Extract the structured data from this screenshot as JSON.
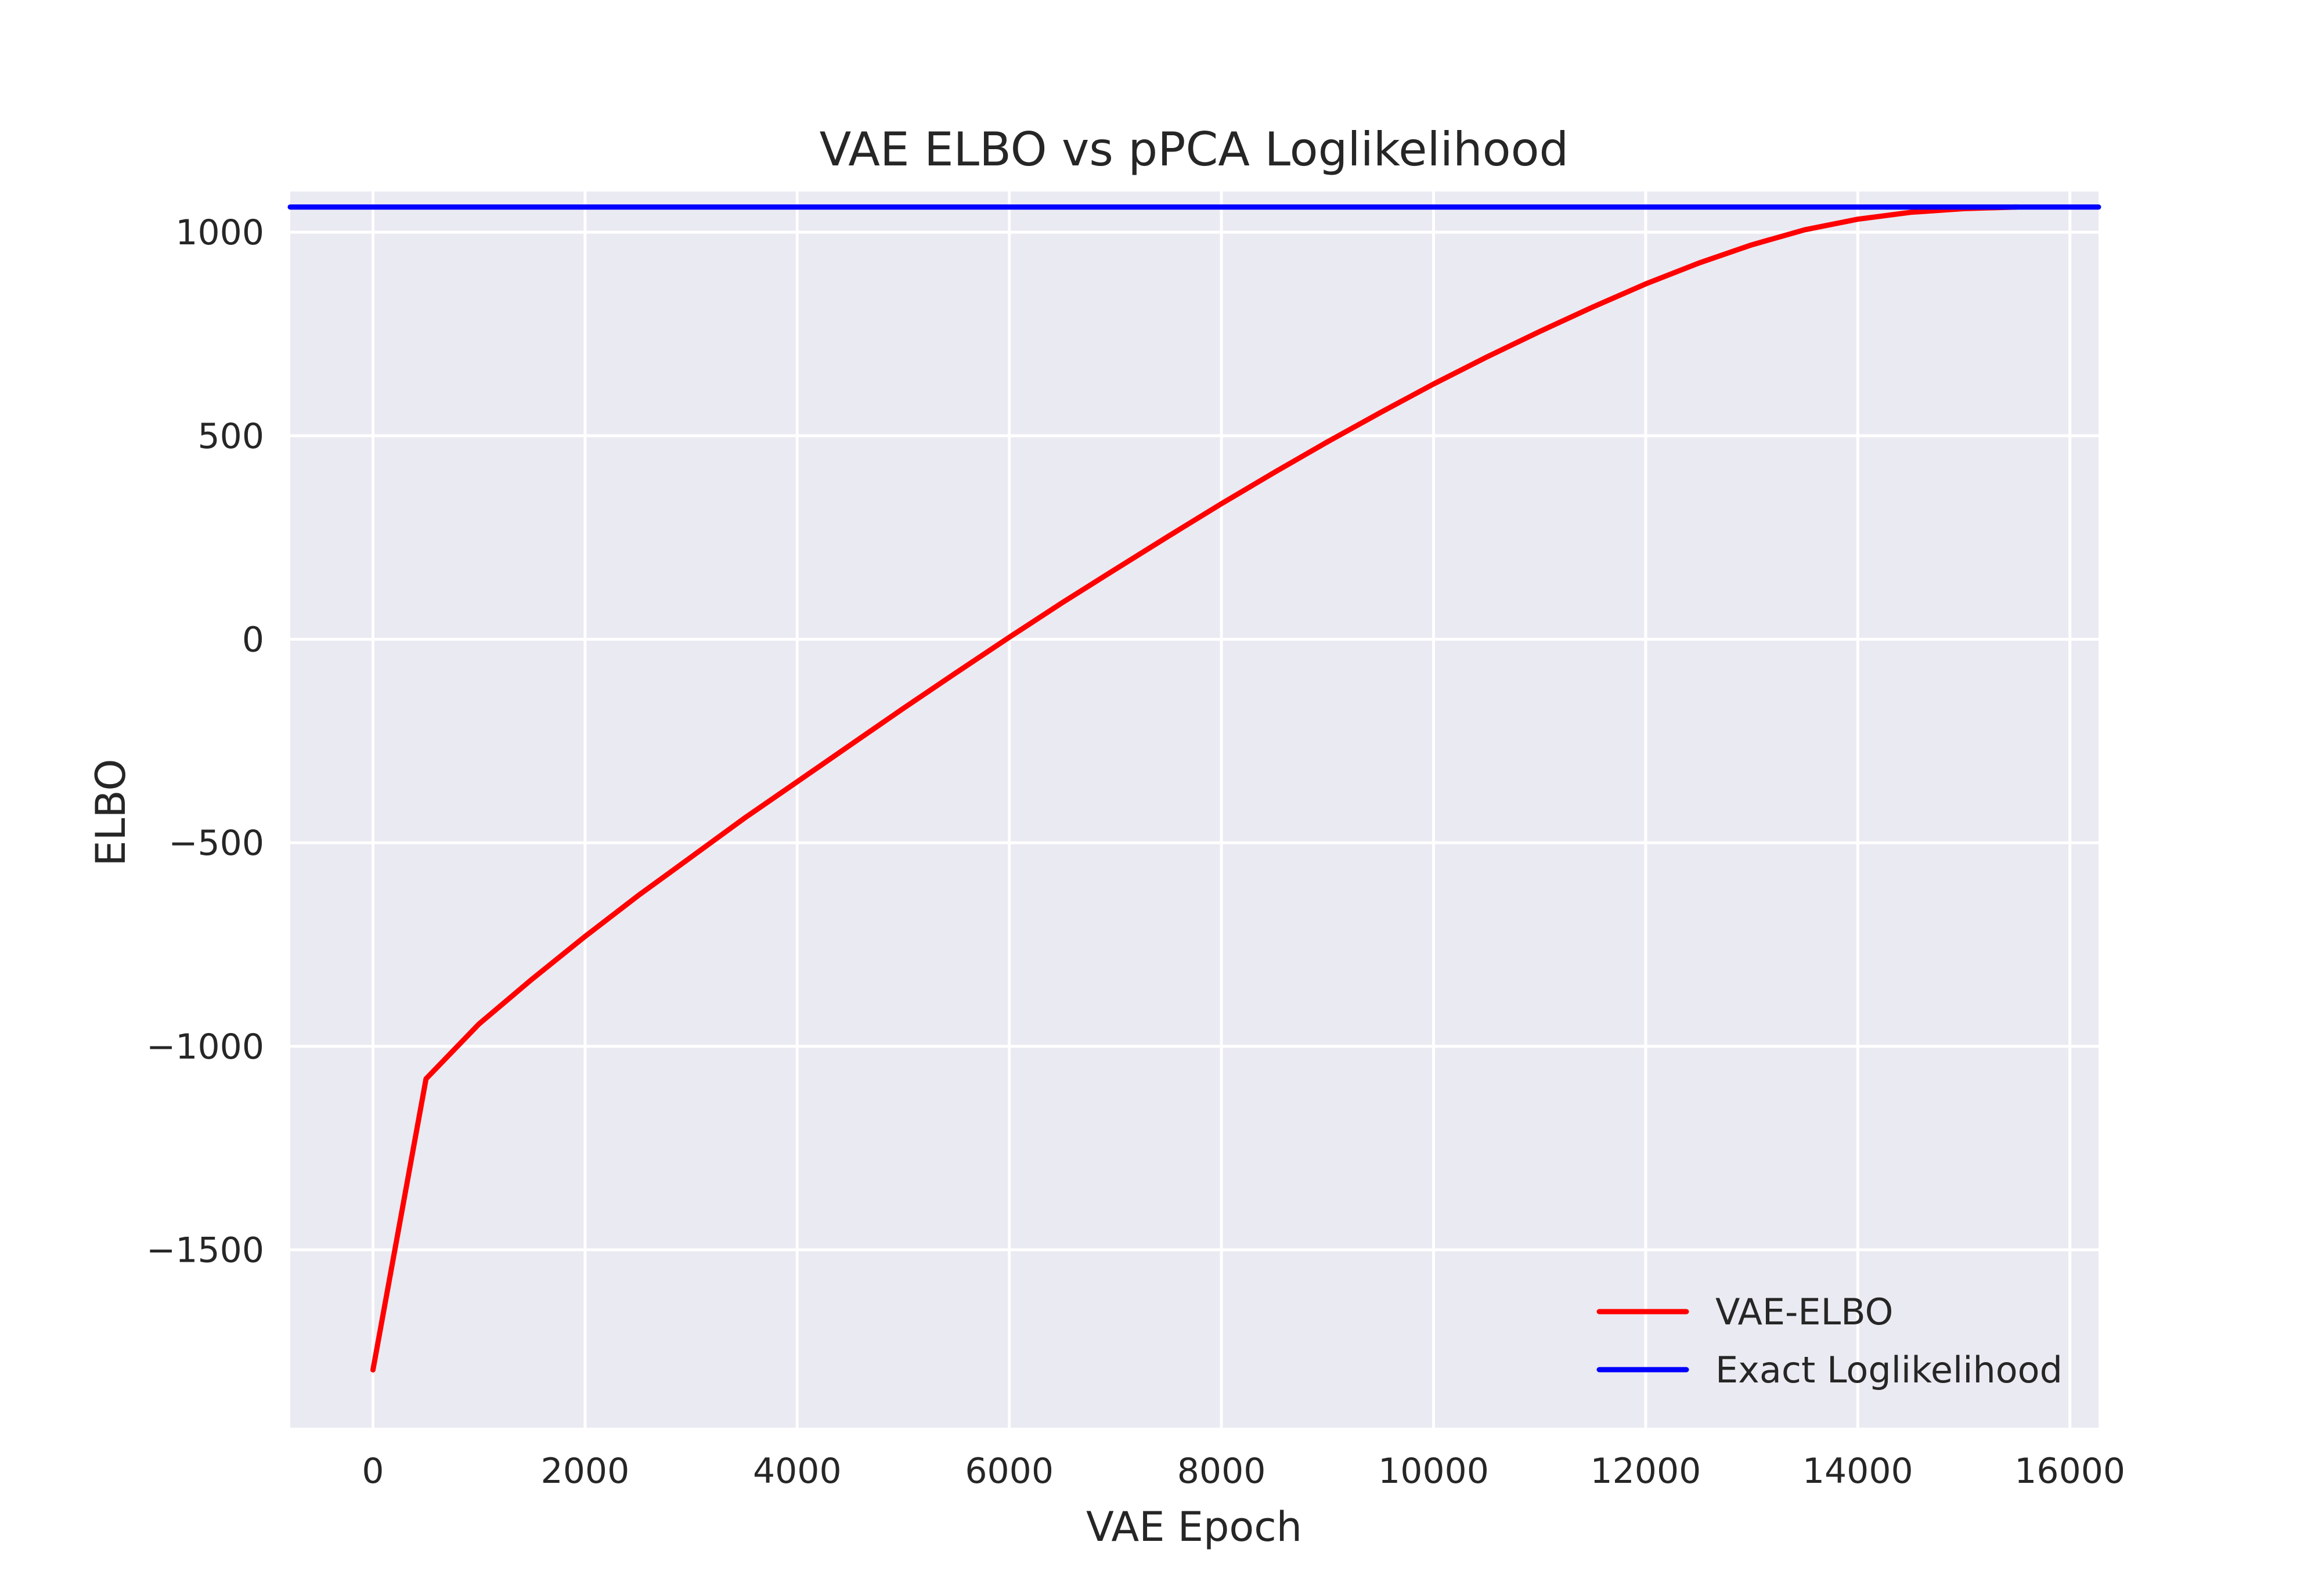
{
  "chart_data": {
    "type": "line",
    "title": "VAE ELBO vs pPCA Loglikelihood",
    "xlabel": "VAE Epoch",
    "ylabel": "ELBO",
    "xlim": [
      -780,
      16270
    ],
    "ylim": [
      -1937,
      1100
    ],
    "xticks": [
      0,
      2000,
      4000,
      6000,
      8000,
      10000,
      12000,
      14000,
      16000
    ],
    "yticks": [
      -1500,
      -1000,
      -500,
      0,
      500,
      1000
    ],
    "grid": true,
    "legend_position": "lower-right",
    "colors": {
      "background": "#eaeaf2",
      "grid": "#ffffff",
      "vae": "#ff0000",
      "exact": "#0000ff",
      "text": "#262626"
    },
    "series": [
      {
        "name": "VAE-ELBO",
        "color": "#ff0000",
        "x": [
          0,
          500,
          1000,
          1500,
          2000,
          2500,
          3000,
          3500,
          4000,
          4500,
          5000,
          5500,
          6000,
          6500,
          7000,
          7500,
          8000,
          8500,
          9000,
          9500,
          10000,
          10500,
          11000,
          11500,
          12000,
          12500,
          13000,
          13500,
          14000,
          14500,
          15000,
          15500
        ],
        "y": [
          -1795,
          -1080,
          -945,
          -835,
          -730,
          -630,
          -535,
          -440,
          -350,
          -260,
          -170,
          -82,
          5,
          90,
          172,
          253,
          333,
          410,
          485,
          557,
          627,
          693,
          756,
          816,
          873,
          924,
          969,
          1006,
          1032,
          1049,
          1058,
          1062
        ]
      },
      {
        "name": "Exact Loglikelihood",
        "color": "#0000ff",
        "x": [
          -780,
          16270
        ],
        "y": [
          1062,
          1062
        ]
      }
    ]
  }
}
